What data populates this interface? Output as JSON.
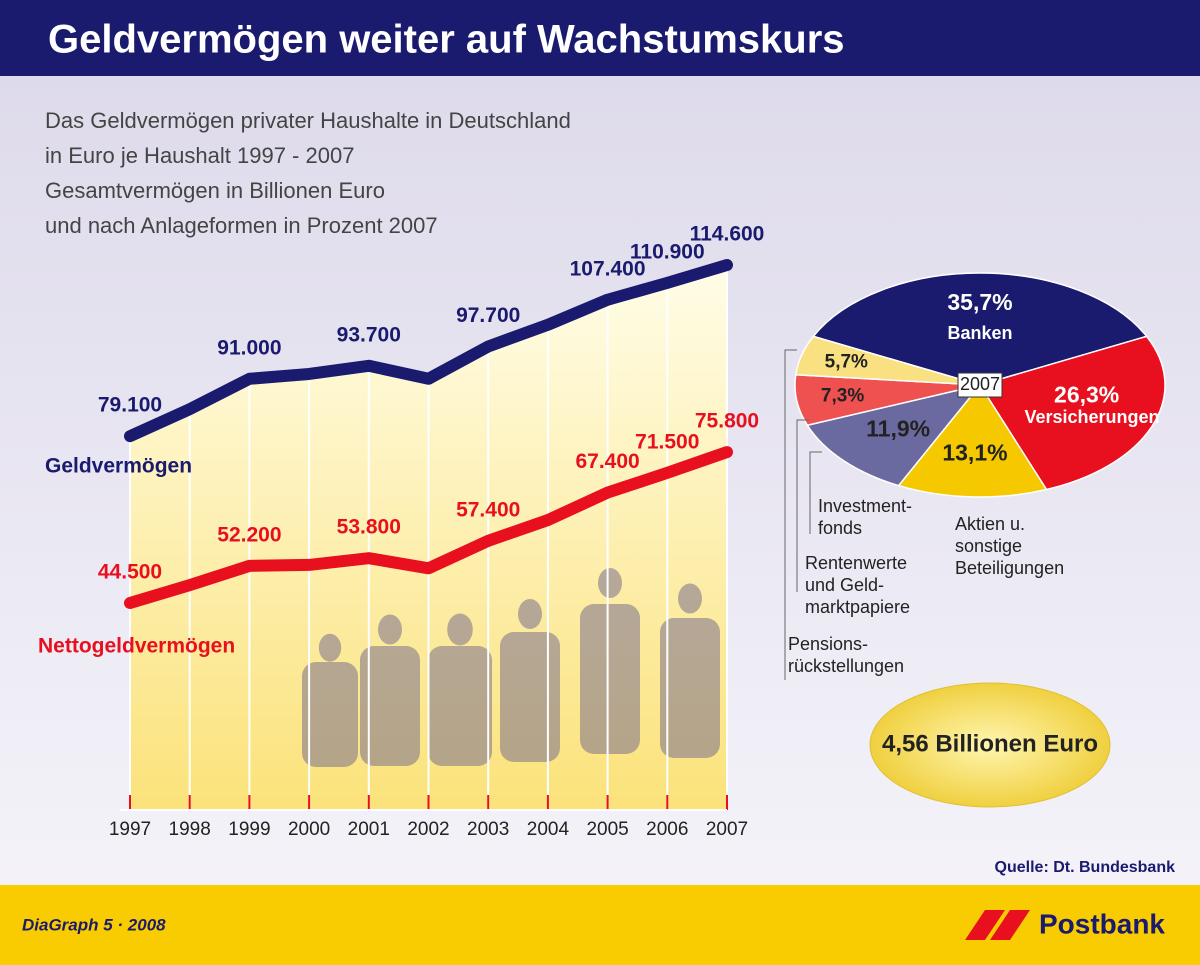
{
  "title": "Geldvermögen weiter auf Wachstumskurs",
  "subtitle": [
    "Das Geldvermögen privater Haushalte in Deutschland",
    "in Euro je Haushalt 1997 - 2007",
    "Gesamtvermögen in Billionen Euro",
    "und nach Anlageformen in Prozent 2007"
  ],
  "chart_data": [
    {
      "type": "line",
      "x": [
        1997,
        1998,
        1999,
        2000,
        2001,
        2002,
        2003,
        2004,
        2005,
        2006,
        2007
      ],
      "series": [
        {
          "name": "Geldvermögen",
          "color": "#1a1a6e",
          "values": [
            79100,
            84700,
            91000,
            92000,
            93700,
            91000,
            97700,
            102200,
            107400,
            110900,
            114600
          ],
          "value_labels": [
            "79.100",
            null,
            "91.000",
            null,
            "93.700",
            null,
            "97.700",
            null,
            "107.400",
            "110.900",
            "114.600"
          ]
        },
        {
          "name": "Nettogeldvermögen",
          "color": "#e8101e",
          "values": [
            44500,
            48200,
            52200,
            52400,
            53800,
            51700,
            57400,
            61700,
            67400,
            71500,
            75800
          ],
          "value_labels": [
            "44.500",
            null,
            "52.200",
            null,
            "53.800",
            null,
            "57.400",
            null,
            "67.400",
            "71.500",
            "75.800"
          ]
        }
      ]
    },
    {
      "type": "pie",
      "center_label": "2007",
      "categories": [
        [
          "Banken"
        ],
        [
          "Versicherungen"
        ],
        [
          "Aktien u.",
          "sonstige",
          "Beteiligungen"
        ],
        [
          "Investment-",
          "fonds"
        ],
        [
          "Rentenwerte",
          "und Geld-",
          "marktpapiere"
        ],
        [
          "Pensions-",
          "rückstellungen"
        ]
      ],
      "values": [
        35.7,
        26.3,
        13.1,
        11.9,
        7.3,
        5.7
      ],
      "value_labels": [
        "35,7%",
        "26,3%",
        "13,1%",
        "11,9%",
        "7,3%",
        "5,7%"
      ],
      "colors": [
        "#1a1a6e",
        "#e8101e",
        "#f5c800",
        "#6a6aa0",
        "#ef5050",
        "#f9e080"
      ],
      "total": "4,56 Billionen Euro"
    }
  ],
  "source": "Quelle: Dt. Bundesbank",
  "footer": "DiaGraph 5 · 2008",
  "brand": "Postbank"
}
